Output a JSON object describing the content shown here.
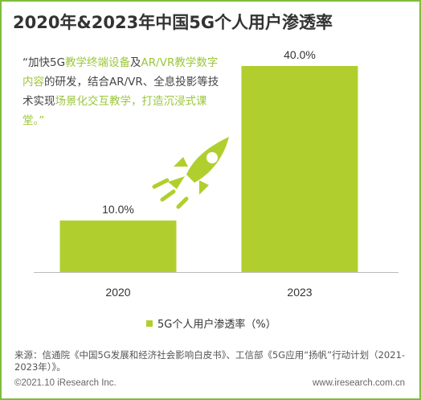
{
  "title": "2020年&2023年中国5G个人用户渗透率",
  "quote": {
    "segments": [
      {
        "text": "“加快5G",
        "highlight": false
      },
      {
        "text": "教学终端设备",
        "highlight": true
      },
      {
        "text": "及",
        "highlight": false
      },
      {
        "text": "AR/VR教学数字内容",
        "highlight": true
      },
      {
        "text": "的研发，结合AR/VR、全息投影等技术实现",
        "highlight": false
      },
      {
        "text": "场景化交互教学，打造沉浸式课堂。”",
        "highlight": true
      }
    ]
  },
  "chart_data": {
    "type": "bar",
    "categories": [
      "2020",
      "2023"
    ],
    "values": [
      10.0,
      40.0
    ],
    "data_labels": [
      "10.0%",
      "40.0%"
    ],
    "series": [
      {
        "name": "5G个人用户渗透率（%）",
        "values": [
          10.0,
          40.0
        ]
      }
    ],
    "ylim": [
      0,
      40
    ],
    "grid": false,
    "legend": "bottom-center",
    "bar_color": "#b0cf2e"
  },
  "icons": {
    "decoration": "rocket-icon"
  },
  "colors": {
    "accent": "#b0cf2e",
    "border": "#7ebd3c",
    "highlight_text": "#9cc63b"
  },
  "source": "来源：信通院《中国5G发展和经济社会影响白皮书》、工信部《5G应用“扬帆”行动计划（2021-2023年）》。",
  "footer": {
    "copyright": "©2021.10 iResearch Inc.",
    "website": "www.iresearch.com.cn"
  }
}
